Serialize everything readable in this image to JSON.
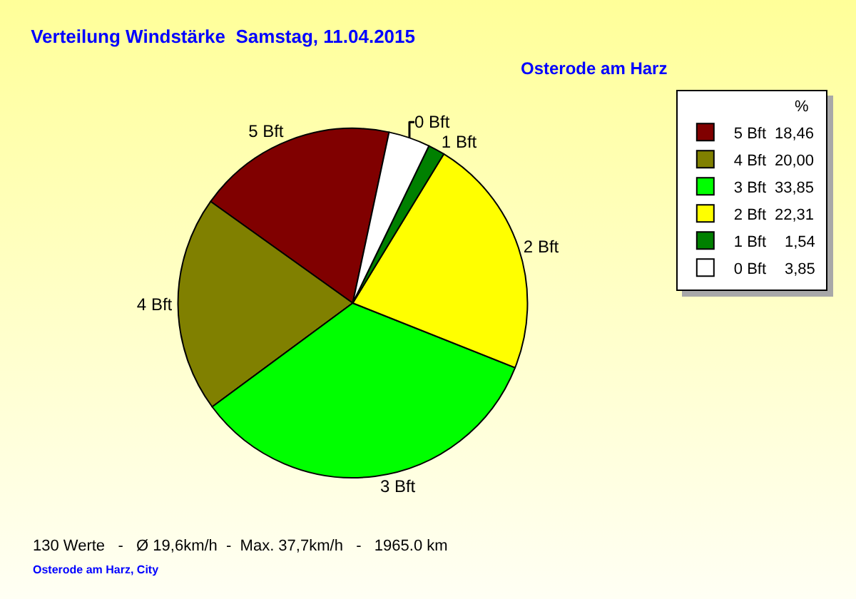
{
  "chart_data": {
    "type": "pie",
    "title": "Verteilung Windstärke  Samstag, 11.04.2015",
    "subtitle": "Osterode am Harz",
    "categories": [
      "5 Bft",
      "4 Bft",
      "3 Bft",
      "2 Bft",
      "1 Bft",
      "0 Bft"
    ],
    "values": [
      18.46,
      20.0,
      33.85,
      22.31,
      1.54,
      3.85
    ],
    "value_labels": [
      "18,46",
      "20,00",
      "33,85",
      "22,31",
      "1,54",
      "3,85"
    ],
    "colors": [
      "#800000",
      "#808000",
      "#00ff00",
      "#ffff00",
      "#008000",
      "#ffffff"
    ],
    "legend_title": "%",
    "legend": "top right",
    "annotations": [
      "130 Werte   -   Ø 19,6km/h  -  Max. 37,7km/h   -   1965.0 km",
      "Osterode am Harz, City"
    ]
  }
}
